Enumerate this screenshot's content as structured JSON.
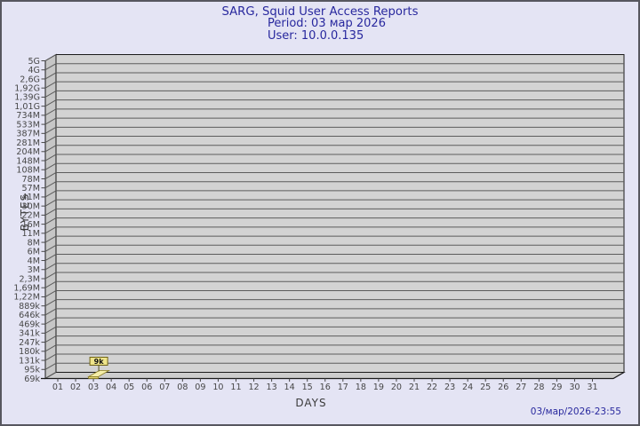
{
  "window": {
    "background_color": "#e4e4f4",
    "border_color": "#57575f"
  },
  "header": {
    "title": "SARG, Squid User Access Reports",
    "period": "Period: 03 мар 2026",
    "user": "User: 10.0.0.135",
    "text_color": "#28289e"
  },
  "footer": {
    "timestamp": "03/мар/2026-23:55"
  },
  "chart_data": {
    "type": "bar",
    "title": "SARG, Squid User Access Reports",
    "subtitle_lines": [
      "Period: 03 мар 2026",
      "User: 10.0.0.135"
    ],
    "xlabel": "DAYS",
    "ylabel": "BYTES",
    "y_axis_scale": "log",
    "grid": "horizontal-only",
    "legend_position": "none",
    "style": "3d-box",
    "x_ticks": [
      "01",
      "02",
      "03",
      "04",
      "05",
      "06",
      "07",
      "08",
      "09",
      "10",
      "11",
      "12",
      "13",
      "14",
      "15",
      "16",
      "17",
      "18",
      "19",
      "20",
      "21",
      "22",
      "23",
      "24",
      "25",
      "26",
      "27",
      "28",
      "29",
      "30",
      "31"
    ],
    "y_ticks": [
      "5G",
      "4G",
      "2,6G",
      "1,92G",
      "1,39G",
      "1,01G",
      "734M",
      "533M",
      "387M",
      "281M",
      "204M",
      "148M",
      "108M",
      "78M",
      "57M",
      "41M",
      "30M",
      "22M",
      "16M",
      "11M",
      "8M",
      "6M",
      "4M",
      "3M",
      "2,3M",
      "1,69M",
      "1,22M",
      "889k",
      "646k",
      "469k",
      "341k",
      "247k",
      "180k",
      "131k",
      "95k",
      "69k"
    ],
    "y_range_labels": {
      "min": "69k",
      "max": "5G"
    },
    "bars": [
      {
        "x": "03",
        "label": "9k",
        "value_bytes": 9000
      }
    ],
    "colors": {
      "plot_fill": "#d3d3d3",
      "wall_fill": "#c6c6c6",
      "floor_fill": "#cdcdcd",
      "grid_line": "#5c5c5c",
      "box_edge": "#1a1a1a",
      "tick_text": "#474747",
      "bar_top_fill": "#f4eda8",
      "bar_front_fill": "#e2d573",
      "bar_edge": "#8a7b22",
      "value_box_fill": "#efe58b",
      "value_box_edge": "#6e6215",
      "value_text": "#111111"
    }
  }
}
